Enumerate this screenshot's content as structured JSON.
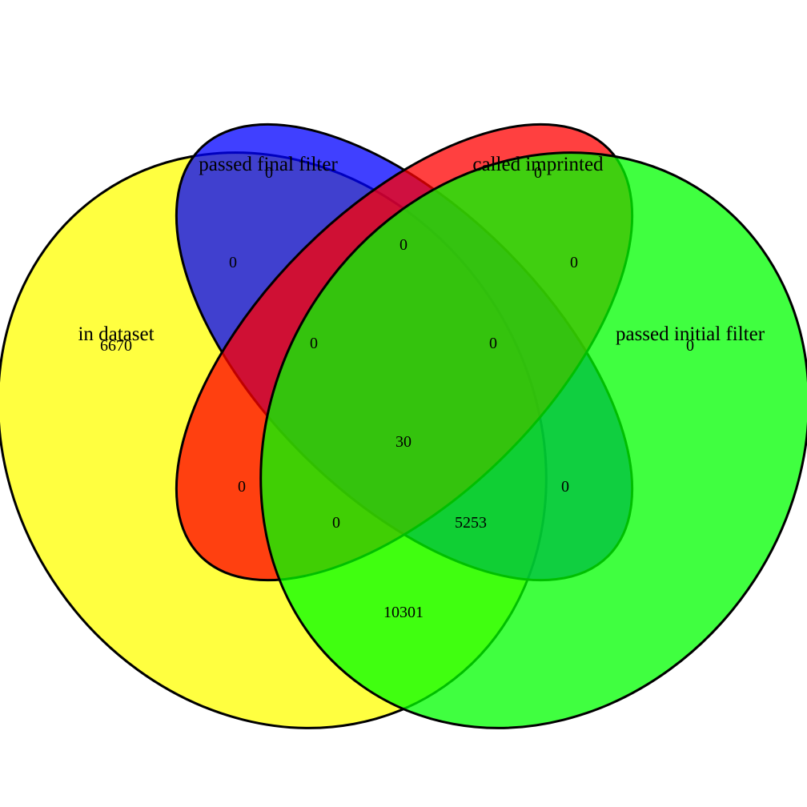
{
  "venn": {
    "sets": [
      {
        "key": "in_dataset",
        "label": "in dataset",
        "color": "#ffff00"
      },
      {
        "key": "passed_final_filter",
        "label": "passed final filter",
        "color": "#0000ff"
      },
      {
        "key": "called_imprinted",
        "label": "called imprinted",
        "color": "#ff0000"
      },
      {
        "key": "passed_initial_filter",
        "label": "passed initial filter",
        "color": "#00ff00"
      }
    ],
    "fill_opacity": 0.75,
    "regions": {
      "in_dataset_only": "6670",
      "passed_final_filter_only": "0",
      "called_imprinted_only": "0",
      "passed_initial_filter_only": "0",
      "in_dataset_and_passed_final_filter": "0",
      "passed_final_filter_and_called_imprinted": "0",
      "called_imprinted_and_passed_initial_filter": "0",
      "in_dataset_and_passed_final_filter_and_called_imprinted": "0",
      "passed_final_filter_and_called_imprinted_and_passed_initial_filter": "0",
      "all_four": "30",
      "in_dataset_and_called_imprinted": "0",
      "passed_final_filter_and_passed_initial_filter": "0",
      "in_dataset_and_called_imprinted_and_passed_initial_filter": "0",
      "in_dataset_and_passed_final_filter_and_passed_initial_filter": "5253",
      "in_dataset_and_passed_initial_filter": "10301"
    }
  }
}
